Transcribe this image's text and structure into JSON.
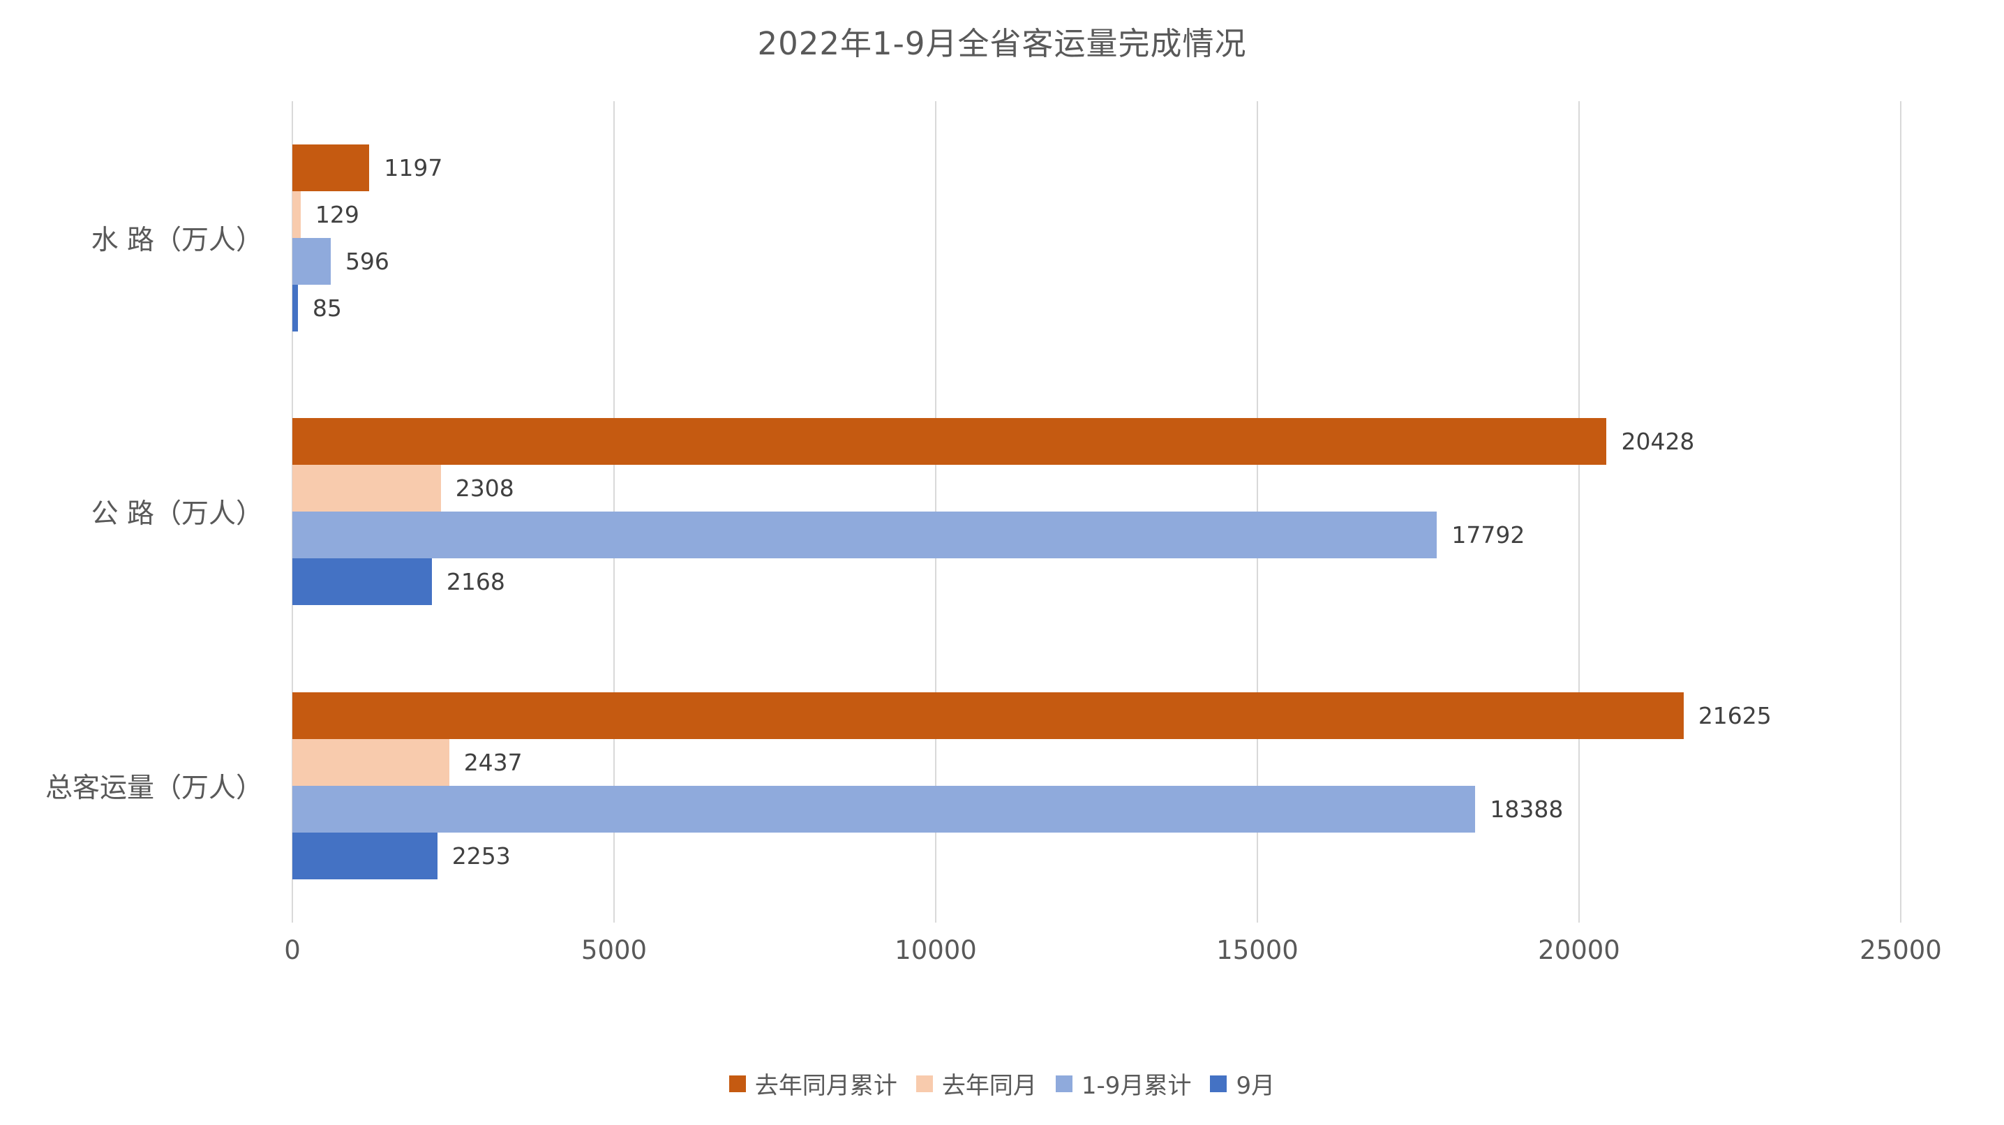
{
  "title": "2022年1-9月全省客运量完成情况",
  "colors": {
    "gridline": "#d9d9d9",
    "title_text": "#595959",
    "axis_text": "#595959",
    "value_text": "#404040"
  },
  "chart_data": {
    "type": "bar",
    "orientation": "horizontal",
    "title": "2022年1-9月全省客运量完成情况",
    "xlabel": "",
    "ylabel": "",
    "xlim": [
      0,
      25000
    ],
    "x_ticks": [
      0,
      5000,
      10000,
      15000,
      20000,
      25000
    ],
    "grid": true,
    "legend_position": "bottom",
    "categories": [
      "水  路（万人）",
      "公  路（万人）",
      "总客运量（万人）"
    ],
    "series": [
      {
        "name": "去年同月累计",
        "color": "#C55A11",
        "values": [
          1197,
          20428,
          21625
        ]
      },
      {
        "name": "去年同月",
        "color": "#F8CBAD",
        "values": [
          129,
          2308,
          2437
        ]
      },
      {
        "name": "1-9月累计",
        "color": "#8FAADC",
        "values": [
          596,
          17792,
          18388
        ]
      },
      {
        "name": "9月",
        "color": "#4472C4",
        "values": [
          85,
          2168,
          2253
        ]
      }
    ]
  }
}
